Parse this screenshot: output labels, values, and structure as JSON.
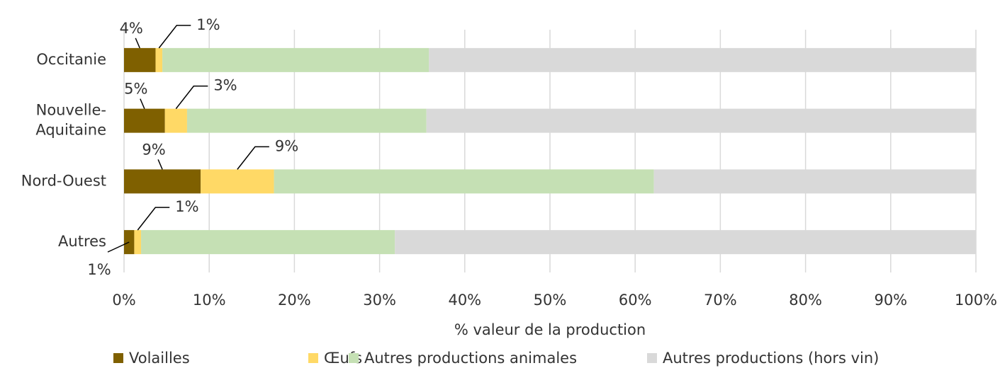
{
  "chart_data": {
    "type": "stacked_bar_horizontal",
    "categories": [
      "Occitanie",
      "Nouvelle-Aquitaine",
      "Nord-Ouest",
      "Autres"
    ],
    "series": [
      {
        "name": "Volailles",
        "color": "#7f6000",
        "values": [
          3.7,
          4.8,
          9.0,
          1.2
        ],
        "value_labels": [
          "4%",
          "5%",
          "9%",
          "1%"
        ]
      },
      {
        "name": "Œufs",
        "color": "#ffd966",
        "values": [
          0.8,
          2.6,
          8.6,
          0.8
        ],
        "value_labels": [
          "1%",
          "3%",
          "9%",
          "1%"
        ]
      },
      {
        "name": "Autres productions animales",
        "color": "#c5e0b4",
        "values": [
          31.3,
          28.1,
          44.6,
          29.8
        ]
      },
      {
        "name": "Autres productions (hors vin)",
        "color": "#d9d9d9",
        "values": [
          64.2,
          64.5,
          37.8,
          68.2
        ]
      }
    ],
    "xlabel": "% valeur de la production",
    "xlim": [
      0,
      100
    ],
    "xticks": [
      {
        "value": 0,
        "label": "0%"
      },
      {
        "value": 10,
        "label": "10%"
      },
      {
        "value": 20,
        "label": "20%"
      },
      {
        "value": 30,
        "label": "30%"
      },
      {
        "value": 40,
        "label": "40%"
      },
      {
        "value": 50,
        "label": "50%"
      },
      {
        "value": 60,
        "label": "60%"
      },
      {
        "value": 70,
        "label": "70%"
      },
      {
        "value": 80,
        "label": "80%"
      },
      {
        "value": 90,
        "label": "90%"
      },
      {
        "value": 100,
        "label": "100%"
      }
    ],
    "grid": true,
    "legend": "bottom"
  }
}
